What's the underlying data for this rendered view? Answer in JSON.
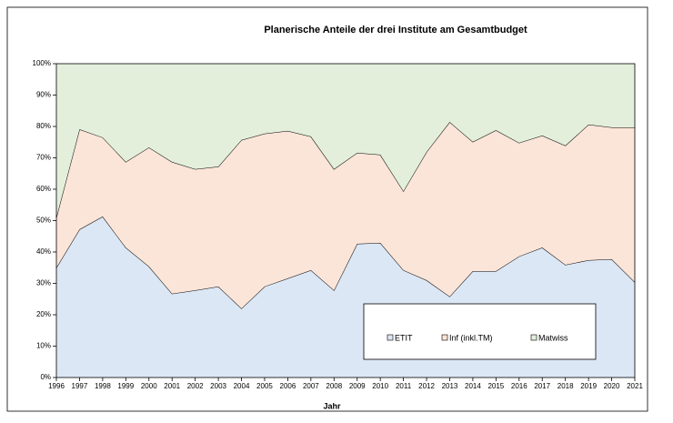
{
  "chart_data": {
    "type": "stacked-area",
    "title": "Planerische Anteile der drei Institute am Gesamtbudget",
    "x_label": "Jahr",
    "categories": [
      "1996",
      "1997",
      "1998",
      "1999",
      "2000",
      "2001",
      "2002",
      "2003",
      "2004",
      "2005",
      "2006",
      "2007",
      "2008",
      "2009",
      "2010",
      "2011",
      "2012",
      "2013",
      "2014",
      "2015",
      "2016",
      "2017",
      "2018",
      "2019",
      "2020",
      "2021"
    ],
    "series": [
      {
        "name": "ETIT",
        "color": "#dce7f5",
        "values": [
          35,
          47.2,
          51.3,
          41.4,
          35.4,
          26.7,
          27.8,
          29,
          22,
          29,
          31.6,
          34.2,
          27.8,
          42.6,
          42.9,
          34.2,
          31,
          25.8,
          33.9,
          33.9,
          38.6,
          41.4,
          35.9,
          37.4,
          37.7,
          30.4
        ]
      },
      {
        "name": "Inf (inkl.TM)",
        "color": "#fbe5d8",
        "values": [
          16,
          31.9,
          25.2,
          27.3,
          37.9,
          42,
          38.6,
          38.2,
          53.7,
          48.7,
          47,
          42.6,
          38.6,
          29,
          28.1,
          25.2,
          40.9,
          55.6,
          41.2,
          44.9,
          36.2,
          35.7,
          38,
          43.2,
          42,
          49.3
        ]
      },
      {
        "name": "Matwiss",
        "color": "#e3efdb",
        "values": [
          49,
          20.9,
          23.5,
          31.3,
          26.7,
          31.3,
          33.6,
          32.8,
          24.3,
          22.3,
          21.4,
          23.2,
          33.6,
          28.4,
          29,
          40.6,
          28.1,
          18.6,
          24.9,
          21.2,
          25.2,
          22.9,
          26.1,
          19.4,
          20.3,
          20.3
        ]
      }
    ],
    "ylim": [
      0,
      100
    ],
    "yticks": [
      {
        "value": 0,
        "label": "0%"
      },
      {
        "value": 10,
        "label": "10%"
      },
      {
        "value": 20,
        "label": "20%"
      },
      {
        "value": 30,
        "label": "30%"
      },
      {
        "value": 40,
        "label": "40%"
      },
      {
        "value": 50,
        "label": "50%"
      },
      {
        "value": 60,
        "label": "60%"
      },
      {
        "value": 70,
        "label": "70%"
      },
      {
        "value": 80,
        "label": "80%"
      },
      {
        "value": 90,
        "label": "90%"
      },
      {
        "value": 100,
        "label": "100%"
      }
    ],
    "legend": "inside-bottom-right"
  }
}
